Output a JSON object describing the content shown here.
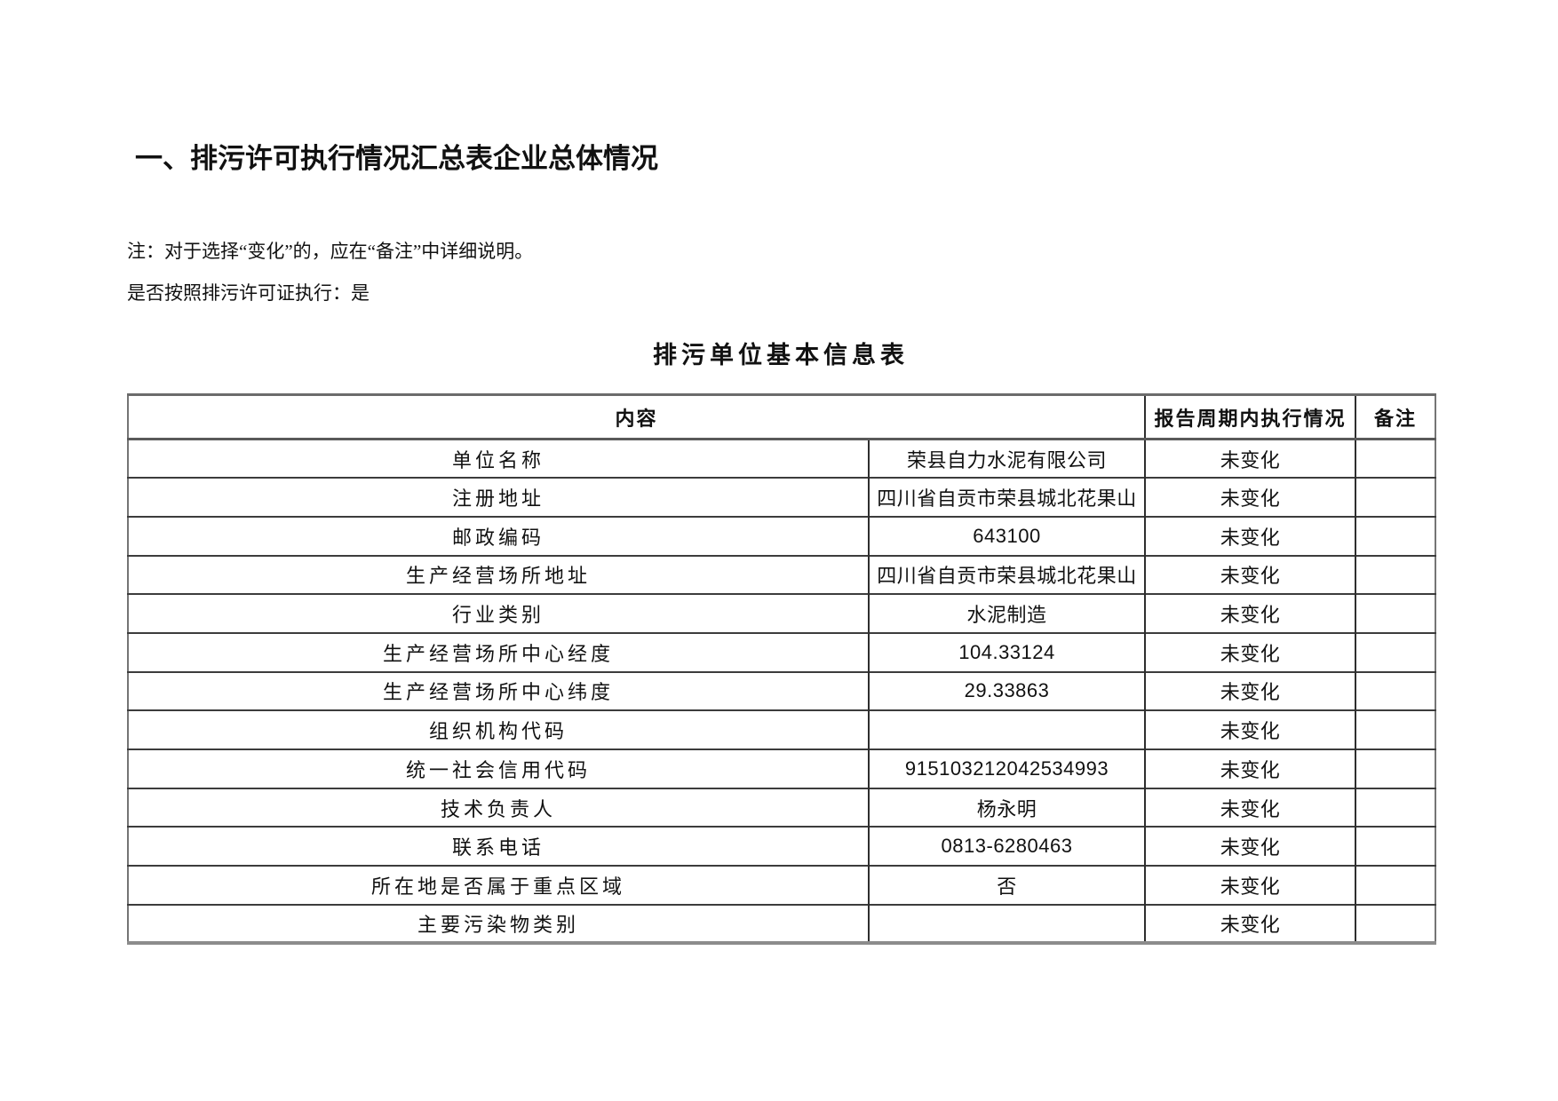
{
  "page": {
    "heading_part1": "一、排污许可执行情况汇总表",
    "heading_part2": "企业总体情况",
    "note": "注：对于选择“变化”的，应在“备注”中详细说明。",
    "compliance_line": "是否按照排污许可证执行：是",
    "table_title": "排污单位基本信息表"
  },
  "table": {
    "headers": {
      "content": "内容",
      "status": "报告周期内执行情况",
      "remark": "备注"
    },
    "rows": [
      {
        "label": "单位名称",
        "value": "荣县自力水泥有限公司",
        "status": "未变化",
        "remark": ""
      },
      {
        "label": "注册地址",
        "value": "四川省自贡市荣县城北花果山",
        "status": "未变化",
        "remark": ""
      },
      {
        "label": "邮政编码",
        "value": "643100",
        "status": "未变化",
        "remark": ""
      },
      {
        "label": "生产经营场所地址",
        "value": "四川省自贡市荣县城北花果山",
        "status": "未变化",
        "remark": ""
      },
      {
        "label": "行业类别",
        "value": "水泥制造",
        "status": "未变化",
        "remark": ""
      },
      {
        "label": "生产经营场所中心经度",
        "value": "104.33124",
        "status": "未变化",
        "remark": ""
      },
      {
        "label": "生产经营场所中心纬度",
        "value": "29.33863",
        "status": "未变化",
        "remark": ""
      },
      {
        "label": "组织机构代码",
        "value": "",
        "status": "未变化",
        "remark": ""
      },
      {
        "label": "统一社会信用代码",
        "value": "915103212042534993",
        "status": "未变化",
        "remark": ""
      },
      {
        "label": "技术负责人",
        "value": "杨永明",
        "status": "未变化",
        "remark": ""
      },
      {
        "label": "联系电话",
        "value": "0813-6280463",
        "status": "未变化",
        "remark": ""
      },
      {
        "label": "所在地是否属于重点区域",
        "value": "否",
        "status": "未变化",
        "remark": ""
      },
      {
        "label": "主要污染物类别",
        "value": "",
        "status": "未变化",
        "remark": ""
      }
    ]
  }
}
